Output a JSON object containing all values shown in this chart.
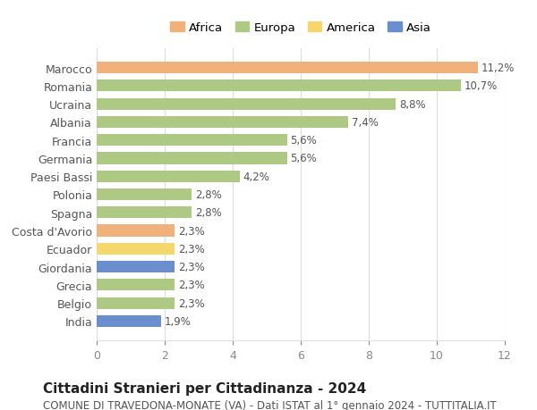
{
  "categories": [
    "India",
    "Belgio",
    "Grecia",
    "Giordania",
    "Ecuador",
    "Costa d'Avorio",
    "Spagna",
    "Polonia",
    "Paesi Bassi",
    "Germania",
    "Francia",
    "Albania",
    "Ucraina",
    "Romania",
    "Marocco"
  ],
  "values": [
    1.9,
    2.3,
    2.3,
    2.3,
    2.3,
    2.3,
    2.8,
    2.8,
    4.2,
    5.6,
    5.6,
    7.4,
    8.8,
    10.7,
    11.2
  ],
  "bar_colors": [
    "#6b8fce",
    "#aec984",
    "#aec984",
    "#6b8fce",
    "#f5d76e",
    "#f0b27a",
    "#aec984",
    "#aec984",
    "#aec984",
    "#aec984",
    "#aec984",
    "#aec984",
    "#aec984",
    "#aec984",
    "#f0b27a"
  ],
  "labels": [
    "1,9%",
    "2,3%",
    "2,3%",
    "2,3%",
    "2,3%",
    "2,3%",
    "2,8%",
    "2,8%",
    "4,2%",
    "5,6%",
    "5,6%",
    "7,4%",
    "8,8%",
    "10,7%",
    "11,2%"
  ],
  "legend": [
    {
      "label": "Africa",
      "color": "#f0b27a"
    },
    {
      "label": "Europa",
      "color": "#aec984"
    },
    {
      "label": "America",
      "color": "#f5d76e"
    },
    {
      "label": "Asia",
      "color": "#6b8fce"
    }
  ],
  "title": "Cittadini Stranieri per Cittadinanza - 2024",
  "subtitle": "COMUNE DI TRAVEDONA-MONATE (VA) - Dati ISTAT al 1° gennaio 2024 - TUTTITALIA.IT",
  "xlim": [
    0,
    12
  ],
  "xticks": [
    0,
    2,
    4,
    6,
    8,
    10,
    12
  ],
  "background_color": "#ffffff",
  "bar_height": 0.65,
  "title_fontsize": 11,
  "subtitle_fontsize": 8.5,
  "tick_fontsize": 9,
  "label_fontsize": 8.5,
  "legend_fontsize": 9.5,
  "grid_color": "#dddddd"
}
